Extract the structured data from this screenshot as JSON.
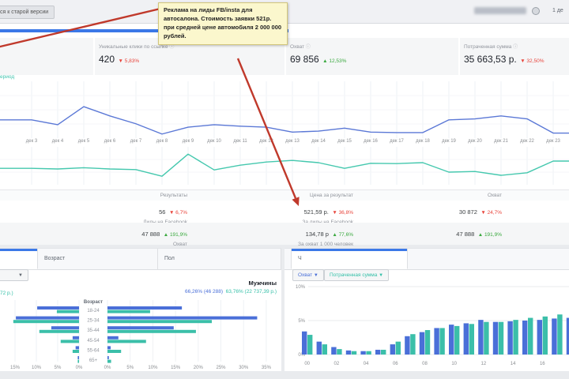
{
  "glyphs": {
    "info": "ⓘ",
    "dropdown_caret": "▼"
  },
  "top_bar": {
    "back_button": "ся к старой версии",
    "date_fragment": "1 де"
  },
  "note": {
    "text": "Реклама на лиды FB/insta для автосалона. Стоимость заявки 521р. при средней цене автомобиля 2 000 000 рублей."
  },
  "overview": {
    "cards": [
      {
        "label": "Уникальные клики по ссылке",
        "value": "420",
        "delta": "▼ 5,83%",
        "dir": "down"
      },
      {
        "label": "Охват",
        "value": "69 856",
        "delta": "▲ 12,53%",
        "dir": "up"
      },
      {
        "label": "Потраченная сумма",
        "value": "35 663,53 р.",
        "delta": "▼ 32,50%",
        "dir": "down"
      }
    ],
    "legend_fragment": "ериод"
  },
  "results_table": {
    "columns": [
      "Результаты",
      "Цена за результат",
      "Охват"
    ],
    "rows": [
      {
        "results_value": "56",
        "results_delta": "▼ 6,7%",
        "results_sub": "Лиды на Facebook",
        "cost_value": "521,59 р.",
        "cost_delta": "▼ 36,8%",
        "cost_sub": "За лиды на Facebook",
        "reach_value": "30 872",
        "reach_delta": "▼ 24,7%"
      },
      {
        "results_value": "47 888",
        "results_delta": "▲ 191,9%",
        "results_sub": "Охват",
        "cost_value": "134,78 р",
        "cost_delta": "▲ 77,6%",
        "cost_sub": "За охват 1 000 человек",
        "reach_value": "47 888",
        "reach_delta": "▲ 191,9%"
      }
    ]
  },
  "demographics": {
    "tabs": [
      "Возраст",
      "Пол"
    ],
    "men_label": "Мужчины",
    "men_blue": "66,26% (46 288)",
    "men_teal": "63,76% (22 737,39 р.)",
    "left_fragment": "72 р.)"
  },
  "hourly_panel": {
    "tab": "Ч",
    "dropdown1": "Охват",
    "dropdown2": "Потраченная сумма"
  },
  "colors": {
    "blue": "#4a6fd8",
    "teal": "#3bbfa9",
    "accent": "#3b78e7",
    "up": "#3aa93f",
    "down": "#e8453c",
    "arrow": "#c0392b"
  },
  "chart_data": [
    {
      "id": "timeline",
      "type": "line",
      "x": [
        "дек 3",
        "дек 4",
        "дек 5",
        "дек 6",
        "дек 7",
        "дек 8",
        "дек 9",
        "дек 10",
        "дек 11",
        "дек 12",
        "дек 13",
        "дек 14",
        "дек 15",
        "дек 16",
        "дек 17",
        "дек 18",
        "дек 19",
        "дек 20",
        "дек 21",
        "дек 22",
        "дек 23"
      ],
      "series": [
        {
          "name": "metric-blue",
          "color": "#5b78d6",
          "values": [
            31,
            21,
            58,
            39,
            23,
            2,
            16,
            21,
            18,
            16,
            6,
            8,
            14,
            6,
            5,
            5,
            31,
            33,
            39,
            33,
            4
          ]
        },
        {
          "name": "metric-teal",
          "color": "#45c8ae",
          "values": [
            42,
            40,
            44,
            40,
            38,
            17,
            87,
            37,
            52,
            62,
            67,
            60,
            42,
            58,
            57,
            60,
            30,
            32,
            20,
            28,
            65
          ]
        }
      ],
      "ylim": [
        0,
        100
      ],
      "grid": true
    },
    {
      "id": "age_gender",
      "type": "bar",
      "subtype": "butterfly",
      "title": "Возраст",
      "groups": [
        "18-24",
        "25-34",
        "35-44",
        "45-54",
        "55-64",
        "65+"
      ],
      "left": {
        "ticks": [
          "15%",
          "10%",
          "5%",
          "0%"
        ],
        "max": 18,
        "series": [
          {
            "name": "blue",
            "values": [
              9.8,
              14.8,
              6.5,
              1.5,
              0.8,
              0.3
            ]
          },
          {
            "name": "teal",
            "values": [
              5.2,
              15.4,
              9.3,
              4.3,
              1.5,
              0.3
            ]
          }
        ]
      },
      "right": {
        "ticks": [
          "0%",
          "5%",
          "10%",
          "15%",
          "20%",
          "25%",
          "30%",
          "35%"
        ],
        "max": 35,
        "series": [
          {
            "name": "blue",
            "values": [
              16.4,
              33,
              14.6,
              2.4,
              0.7,
              0.3
            ]
          },
          {
            "name": "teal",
            "values": [
              9.4,
              23,
              19.5,
              8.5,
              3,
              0.8
            ]
          }
        ]
      }
    },
    {
      "id": "hourly",
      "type": "bar",
      "x": [
        "00",
        "01",
        "02",
        "03",
        "04",
        "05",
        "06",
        "07",
        "08",
        "09",
        "10",
        "11",
        "12",
        "13",
        "14",
        "15",
        "16",
        "17",
        "18"
      ],
      "tick_labels": [
        "00",
        "02",
        "04",
        "06",
        "08",
        "10",
        "12",
        "14",
        "16"
      ],
      "yticks": [
        "0%",
        "5%",
        "10%"
      ],
      "ylim": [
        0,
        10
      ],
      "series": [
        {
          "name": "Охват",
          "color": "#4a6fd8",
          "values": [
            3.4,
            1.9,
            1.1,
            0.6,
            0.5,
            0.7,
            1.5,
            2.7,
            3.3,
            3.9,
            4.4,
            4.6,
            5.1,
            4.8,
            4.9,
            5.0,
            5.1,
            5.3,
            5.4
          ]
        },
        {
          "name": "Потраченная сумма",
          "color": "#3bbfa9",
          "values": [
            2.9,
            1.5,
            0.8,
            0.5,
            0.5,
            0.7,
            1.9,
            3.0,
            3.6,
            3.9,
            4.2,
            4.5,
            4.8,
            4.8,
            5.1,
            5.4,
            5.6,
            5.9,
            6.1
          ]
        }
      ]
    }
  ]
}
